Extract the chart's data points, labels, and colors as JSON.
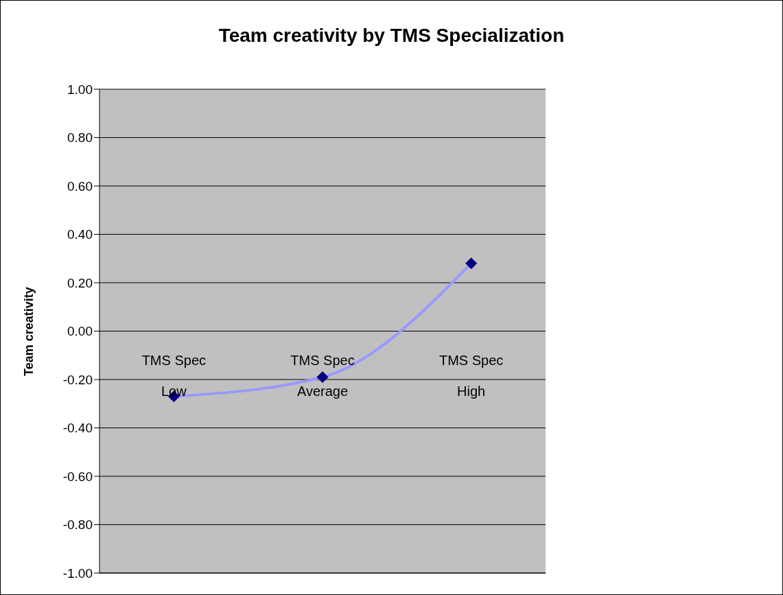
{
  "chart_data": {
    "type": "line",
    "title": "Team creativity by TMS Specialization",
    "ylabel": "Team creativity",
    "categories": [
      "TMS Spec Low",
      "TMS Spec Average",
      "TMS Spec High"
    ],
    "series": [
      {
        "color": "#9999ff",
        "colors": [
          "#000080",
          "#000080",
          "#000080"
        ],
        "values": [
          -0.27,
          -0.19,
          0.28
        ]
      }
    ],
    "marker": "diamond",
    "ylim": [
      -1,
      1
    ],
    "yticks": [
      {
        "value": -1,
        "label": "-1.00"
      },
      {
        "value": -0.8,
        "label": "-0.80"
      },
      {
        "value": -0.6,
        "label": "-0.60"
      },
      {
        "value": -0.4,
        "label": "-0.40"
      },
      {
        "value": -0.2,
        "label": "-0.20"
      },
      {
        "value": 0,
        "label": "0.00"
      },
      {
        "value": 0.2,
        "label": "0.20"
      },
      {
        "value": 0.4,
        "label": "0.40"
      },
      {
        "value": 0.6,
        "label": "0.60"
      },
      {
        "value": 0.8,
        "label": "0.80"
      },
      {
        "value": 1,
        "label": "1.00"
      }
    ],
    "grid": "y",
    "legend": false
  }
}
